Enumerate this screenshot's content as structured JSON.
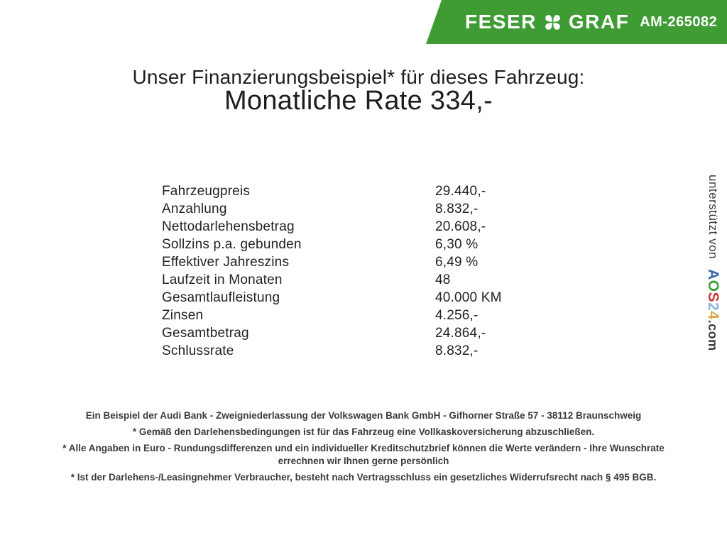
{
  "banner": {
    "brand_left": "FESER",
    "brand_right": "GRAF",
    "ref": "AM-265082",
    "green": "#3F9C35"
  },
  "header": {
    "subtitle": "Unser Finanzierungsbeispiel* für dieses Fahrzeug:",
    "title": "Monatliche Rate 334,-"
  },
  "finance_table": {
    "rows": [
      {
        "label": "Fahrzeugpreis",
        "value": "29.440,-"
      },
      {
        "label": "Anzahlung",
        "value": "8.832,-"
      },
      {
        "label": "Nettodarlehensbetrag",
        "value": "20.608,-"
      },
      {
        "label": "Sollzins p.a. gebunden",
        "value": "6,30 %"
      },
      {
        "label": "Effektiver Jahreszins",
        "value": "6,49 %"
      },
      {
        "label": "Laufzeit in Monaten",
        "value": "48"
      },
      {
        "label": "Gesamtlaufleistung",
        "value": "40.000 KM"
      },
      {
        "label": "Zinsen",
        "value": "4.256,-"
      },
      {
        "label": "Gesamtbetrag",
        "value": "24.864,-"
      },
      {
        "label": "Schlussrate",
        "value": "8.832,-"
      }
    ]
  },
  "sidebar": {
    "supported_by": "unterstützt von",
    "logo_letters": [
      {
        "char": "A",
        "color": "#3A67AE"
      },
      {
        "char": "O",
        "color": "#3FA13B"
      },
      {
        "char": "S",
        "color": "#C93832"
      },
      {
        "char": "2",
        "color": "#8FB4DC"
      },
      {
        "char": "4",
        "color": "#D9A748"
      }
    ],
    "logo_suffix": ".com"
  },
  "footer": {
    "paragraphs": [
      "Ein Beispiel der Audi Bank - Zweigniederlassung der Volkswagen Bank GmbH - Gifhorner Straße 57 - 38112 Braunschweig",
      "* Gemäß den Darlehensbedingungen ist für das Fahrzeug eine Vollkaskoversicherung abzuschließen.",
      "* Alle Angaben in Euro - Rundungsdifferenzen und ein individueller Kreditschutzbrief können die Werte verändern - Ihre Wunschrate errechnen wir Ihnen gerne persönlich",
      "* Ist der Darlehens-/Leasingnehmer Verbraucher, besteht nach Vertragsschluss ein gesetzliches Widerrufsrecht nach § 495 BGB."
    ]
  }
}
